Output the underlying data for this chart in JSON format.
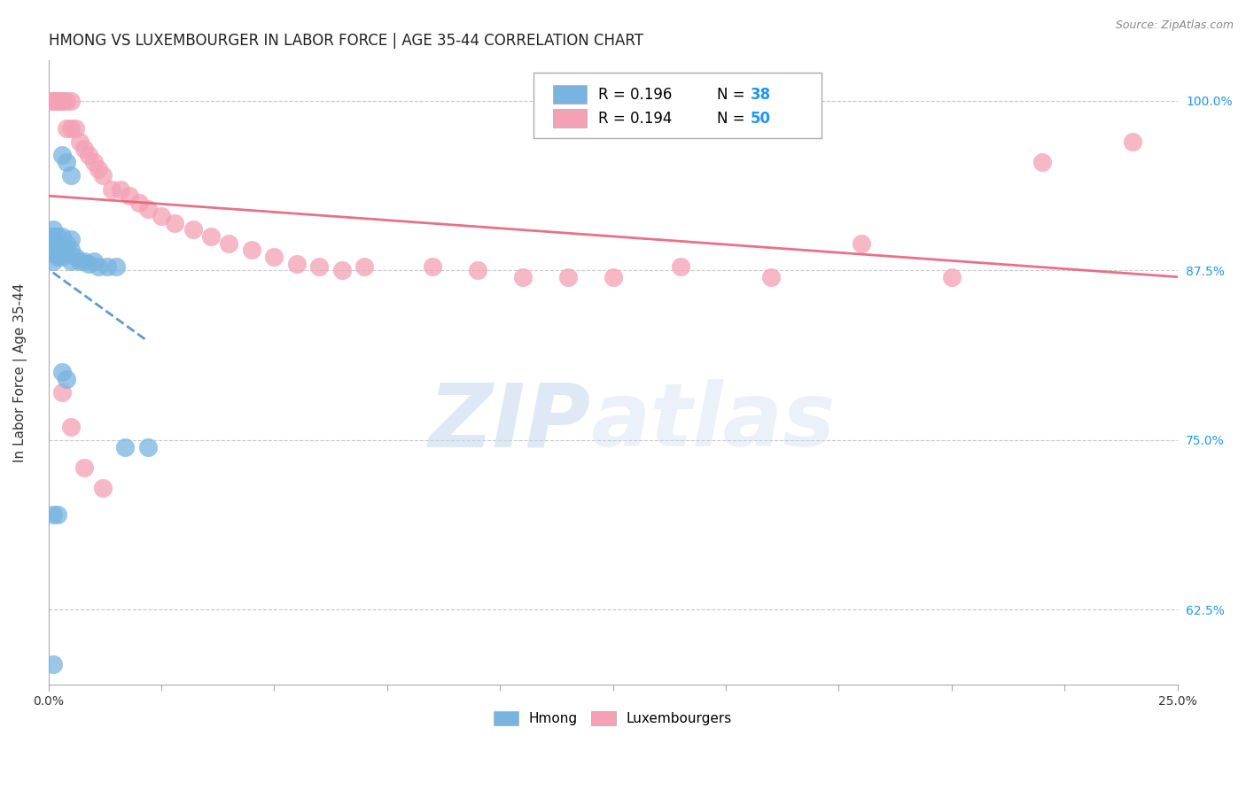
{
  "title": "HMONG VS LUXEMBOURGER IN LABOR FORCE | AGE 35-44 CORRELATION CHART",
  "source": "Source: ZipAtlas.com",
  "ylabel": "In Labor Force | Age 35-44",
  "xlim": [
    0.0,
    0.25
  ],
  "ylim": [
    0.57,
    1.03
  ],
  "ytick_vals": [
    0.625,
    0.75,
    0.875,
    1.0
  ],
  "ytick_labels": [
    "62.5%",
    "75.0%",
    "87.5%",
    "100.0%"
  ],
  "xtick_vals": [
    0.0,
    0.025,
    0.05,
    0.075,
    0.1,
    0.125,
    0.15,
    0.175,
    0.2,
    0.225,
    0.25
  ],
  "xtick_labels": [
    "0.0%",
    "",
    "",
    "",
    "",
    "",
    "",
    "",
    "",
    "",
    "25.0%"
  ],
  "blue_color": "#78b4e0",
  "pink_color": "#f4a0b5",
  "trend_blue_color": "#5090c8",
  "trend_pink_color": "#e8607a",
  "watermark_zip": "ZIP",
  "watermark_atlas": "atlas",
  "title_fontsize": 12,
  "source_fontsize": 9,
  "tick_fontsize": 10,
  "ylabel_fontsize": 11,
  "hmong_x": [
    0.001,
    0.001,
    0.001,
    0.001,
    0.001,
    0.001,
    0.001,
    0.001,
    0.002,
    0.002,
    0.002,
    0.002,
    0.003,
    0.003,
    0.003,
    0.004,
    0.004,
    0.005,
    0.005,
    0.005,
    0.006,
    0.007,
    0.008,
    0.009,
    0.01,
    0.011,
    0.013,
    0.015,
    0.003,
    0.004,
    0.017,
    0.022,
    0.003,
    0.004,
    0.005,
    0.001,
    0.002,
    0.001
  ],
  "hmong_y": [
    0.895,
    0.895,
    0.9,
    0.905,
    0.9,
    0.895,
    0.888,
    0.882,
    0.895,
    0.9,
    0.893,
    0.885,
    0.9,
    0.893,
    0.885,
    0.895,
    0.888,
    0.898,
    0.89,
    0.882,
    0.885,
    0.882,
    0.882,
    0.88,
    0.882,
    0.878,
    0.878,
    0.878,
    0.8,
    0.795,
    0.745,
    0.745,
    0.96,
    0.955,
    0.945,
    0.695,
    0.695,
    0.585
  ],
  "lux_x": [
    0.001,
    0.001,
    0.001,
    0.002,
    0.002,
    0.002,
    0.003,
    0.003,
    0.004,
    0.004,
    0.005,
    0.005,
    0.006,
    0.007,
    0.008,
    0.009,
    0.01,
    0.011,
    0.012,
    0.014,
    0.016,
    0.018,
    0.02,
    0.022,
    0.025,
    0.028,
    0.032,
    0.036,
    0.04,
    0.045,
    0.05,
    0.055,
    0.06,
    0.065,
    0.07,
    0.085,
    0.095,
    0.105,
    0.115,
    0.125,
    0.14,
    0.16,
    0.18,
    0.2,
    0.22,
    0.24,
    0.003,
    0.005,
    0.008,
    0.012
  ],
  "lux_y": [
    1.0,
    1.0,
    1.0,
    1.0,
    1.0,
    1.0,
    1.0,
    1.0,
    1.0,
    0.98,
    1.0,
    0.98,
    0.98,
    0.97,
    0.965,
    0.96,
    0.955,
    0.95,
    0.945,
    0.935,
    0.935,
    0.93,
    0.925,
    0.92,
    0.915,
    0.91,
    0.905,
    0.9,
    0.895,
    0.89,
    0.885,
    0.88,
    0.878,
    0.875,
    0.878,
    0.878,
    0.875,
    0.87,
    0.87,
    0.87,
    0.878,
    0.87,
    0.895,
    0.87,
    0.955,
    0.97,
    0.785,
    0.76,
    0.73,
    0.715
  ]
}
